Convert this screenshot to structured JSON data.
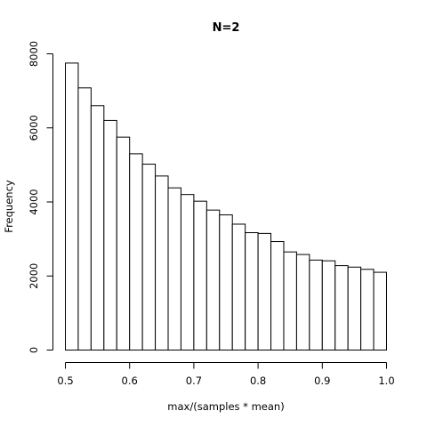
{
  "chart_data": {
    "type": "bar",
    "subtype": "histogram",
    "title": "N=2",
    "xlabel": "max/(samples * mean)",
    "ylabel": "Frequency",
    "xlim": [
      0.5,
      1.0
    ],
    "ylim": [
      0,
      8000
    ],
    "x_ticks": [
      "0.5",
      "0.6",
      "0.7",
      "0.8",
      "0.9",
      "1.0"
    ],
    "y_ticks": [
      "0",
      "2000",
      "4000",
      "6000",
      "8000"
    ],
    "bin_width": 0.02,
    "bin_starts": [
      0.5,
      0.52,
      0.54,
      0.56,
      0.58,
      0.6,
      0.62,
      0.64,
      0.66,
      0.68,
      0.7,
      0.72,
      0.74,
      0.76,
      0.78,
      0.8,
      0.82,
      0.84,
      0.86,
      0.88,
      0.9,
      0.92,
      0.94,
      0.96,
      0.98
    ],
    "values": [
      7750,
      7080,
      6600,
      6200,
      5750,
      5300,
      5020,
      4700,
      4380,
      4200,
      4020,
      3780,
      3650,
      3400,
      3170,
      3150,
      2930,
      2650,
      2580,
      2430,
      2410,
      2280,
      2240,
      2180,
      2100
    ],
    "grid": false,
    "bar_fill": "#ffffff",
    "bar_stroke": "#000000"
  }
}
